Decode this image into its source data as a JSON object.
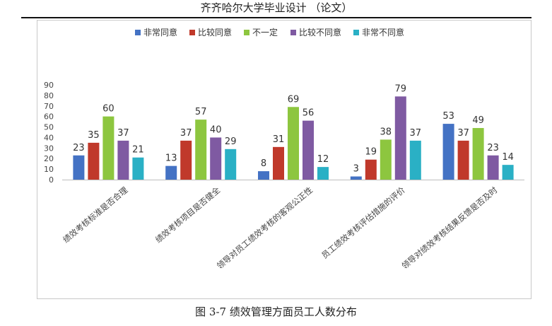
{
  "header": {
    "title": "齐齐哈尔大学毕业设计 （论文）"
  },
  "caption": "图 3-7 绩效管理方面员工人数分布",
  "chart_data": {
    "type": "bar",
    "categories": [
      "绩效考核标准是否合理",
      "绩效考核项目是否健全",
      "领导对员工绩效考核的客观公正性",
      "员工绩效考核评估措施的评价",
      "领导对绩效考核结果反馈是否及时"
    ],
    "series": [
      {
        "name": "非常同意",
        "color": "#4472c4",
        "values": [
          23,
          13,
          8,
          3,
          53
        ]
      },
      {
        "name": "比较同意",
        "color": "#c0392b",
        "values": [
          35,
          37,
          31,
          19,
          37
        ]
      },
      {
        "name": "不一定",
        "color": "#8dc63f",
        "values": [
          60,
          57,
          69,
          38,
          49
        ]
      },
      {
        "name": "比较不同意",
        "color": "#7f5aa2",
        "values": [
          37,
          40,
          56,
          79,
          23
        ]
      },
      {
        "name": "非常不同意",
        "color": "#2ab0c5",
        "values": [
          21,
          29,
          12,
          37,
          14
        ]
      }
    ],
    "yticks": [
      "0",
      "10",
      "20",
      "30",
      "40",
      "50",
      "60",
      "70",
      "80",
      "90"
    ],
    "ylim": [
      0,
      90
    ],
    "legend": "top",
    "grid": false
  }
}
